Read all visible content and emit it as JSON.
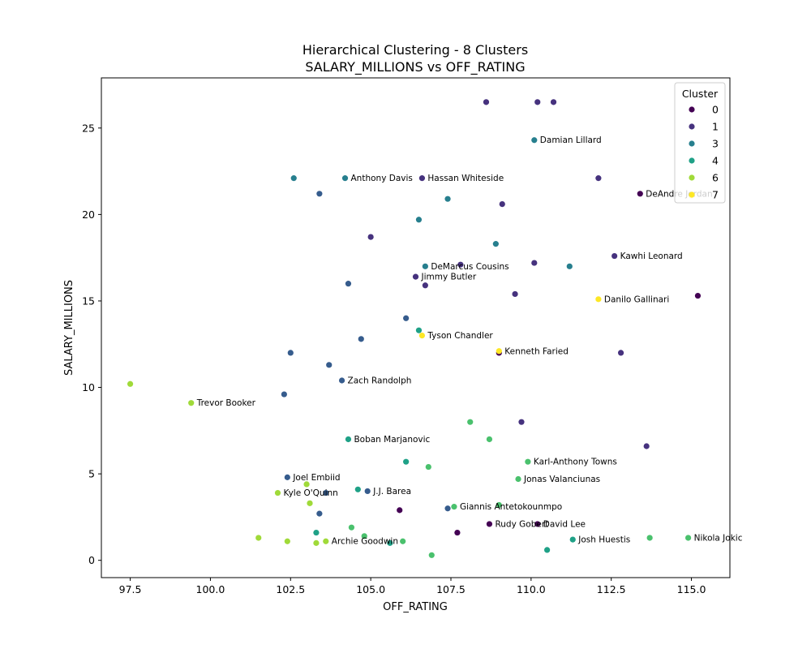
{
  "chart_data": {
    "type": "scatter",
    "title": "Hierarchical Clustering - 8 Clusters",
    "subtitle": "SALARY_MILLIONS vs OFF_RATING",
    "xlabel": "OFF_RATING",
    "ylabel": "SALARY_MILLIONS",
    "xlim": [
      96.6,
      116.2
    ],
    "ylim": [
      -1.0,
      27.9
    ],
    "xticks": [
      "97.5",
      "100.0",
      "102.5",
      "105.0",
      "107.5",
      "110.0",
      "112.5",
      "115.0"
    ],
    "yticks": [
      "0",
      "5",
      "10",
      "15",
      "20",
      "25"
    ],
    "grid": false,
    "legend": {
      "title": "Cluster",
      "placement": "top-right",
      "entries": [
        {
          "label": "0",
          "color": "#440154"
        },
        {
          "label": "1",
          "color": "#46327e"
        },
        {
          "label": "3",
          "color": "#277f8e"
        },
        {
          "label": "4",
          "color": "#1fa187"
        },
        {
          "label": "6",
          "color": "#a0da39"
        },
        {
          "label": "7",
          "color": "#fde725"
        }
      ]
    },
    "cluster_colors": {
      "0": "#440154",
      "1": "#46327e",
      "2": "#365c8d",
      "3": "#277f8e",
      "4": "#1fa187",
      "5": "#4ac16d",
      "6": "#a0da39",
      "7": "#fde725"
    },
    "points": [
      {
        "x": 108.6,
        "y": 26.5,
        "c": 1
      },
      {
        "x": 110.2,
        "y": 26.5,
        "c": 1
      },
      {
        "x": 110.7,
        "y": 26.5,
        "c": 1
      },
      {
        "x": 110.1,
        "y": 24.3,
        "c": 3,
        "label": "Damian Lillard"
      },
      {
        "x": 102.6,
        "y": 22.1,
        "c": 3
      },
      {
        "x": 104.2,
        "y": 22.1,
        "c": 3,
        "label": "Anthony Davis"
      },
      {
        "x": 106.6,
        "y": 22.1,
        "c": 1,
        "label": "Hassan Whiteside"
      },
      {
        "x": 112.1,
        "y": 22.1,
        "c": 1
      },
      {
        "x": 103.4,
        "y": 21.2,
        "c": 2
      },
      {
        "x": 113.4,
        "y": 21.2,
        "c": 0,
        "label": "DeAndre Jordan"
      },
      {
        "x": 115.0,
        "y": 21.1,
        "c": 7
      },
      {
        "x": 107.4,
        "y": 20.9,
        "c": 3
      },
      {
        "x": 109.1,
        "y": 20.6,
        "c": 1
      },
      {
        "x": 106.5,
        "y": 19.7,
        "c": 3
      },
      {
        "x": 105.0,
        "y": 18.7,
        "c": 1
      },
      {
        "x": 108.9,
        "y": 18.3,
        "c": 3
      },
      {
        "x": 112.6,
        "y": 17.6,
        "c": 1,
        "label": "Kawhi Leonard"
      },
      {
        "x": 107.8,
        "y": 17.1,
        "c": 1
      },
      {
        "x": 110.1,
        "y": 17.2,
        "c": 1
      },
      {
        "x": 106.7,
        "y": 17.0,
        "c": 3,
        "label": "DeMarcus Cousins"
      },
      {
        "x": 111.2,
        "y": 17.0,
        "c": 3
      },
      {
        "x": 106.4,
        "y": 16.4,
        "c": 1,
        "label": "Jimmy Butler"
      },
      {
        "x": 104.3,
        "y": 16.0,
        "c": 2
      },
      {
        "x": 106.7,
        "y": 15.9,
        "c": 1
      },
      {
        "x": 109.5,
        "y": 15.4,
        "c": 1
      },
      {
        "x": 115.2,
        "y": 15.3,
        "c": 0
      },
      {
        "x": 112.1,
        "y": 15.1,
        "c": 7,
        "label": "Danilo Gallinari"
      },
      {
        "x": 106.1,
        "y": 14.0,
        "c": 2
      },
      {
        "x": 106.5,
        "y": 13.3,
        "c": 4
      },
      {
        "x": 106.6,
        "y": 13.0,
        "c": 7,
        "label": "Tyson Chandler"
      },
      {
        "x": 104.7,
        "y": 12.8,
        "c": 2
      },
      {
        "x": 102.5,
        "y": 12.0,
        "c": 2
      },
      {
        "x": 109.0,
        "y": 12.0,
        "c": 0
      },
      {
        "x": 109.0,
        "y": 12.1,
        "c": 7,
        "label": "Kenneth Faried"
      },
      {
        "x": 112.8,
        "y": 12.0,
        "c": 1
      },
      {
        "x": 103.7,
        "y": 11.3,
        "c": 2
      },
      {
        "x": 104.1,
        "y": 10.4,
        "c": 2,
        "label": "Zach Randolph"
      },
      {
        "x": 97.5,
        "y": 10.2,
        "c": 6
      },
      {
        "x": 102.3,
        "y": 9.6,
        "c": 2
      },
      {
        "x": 99.4,
        "y": 9.1,
        "c": 6,
        "label": "Trevor Booker"
      },
      {
        "x": 108.1,
        "y": 8.0,
        "c": 5
      },
      {
        "x": 109.7,
        "y": 8.0,
        "c": 1
      },
      {
        "x": 104.3,
        "y": 7.0,
        "c": 4,
        "label": "Boban Marjanovic"
      },
      {
        "x": 108.7,
        "y": 7.0,
        "c": 5
      },
      {
        "x": 113.6,
        "y": 6.6,
        "c": 1
      },
      {
        "x": 106.1,
        "y": 5.7,
        "c": 4
      },
      {
        "x": 109.9,
        "y": 5.7,
        "c": 5,
        "label": "Karl-Anthony Towns"
      },
      {
        "x": 106.8,
        "y": 5.4,
        "c": 5
      },
      {
        "x": 102.4,
        "y": 4.8,
        "c": 2,
        "label": "Joel Embiid"
      },
      {
        "x": 109.6,
        "y": 4.7,
        "c": 5,
        "label": "Jonas Valanciunas"
      },
      {
        "x": 103.0,
        "y": 4.4,
        "c": 6
      },
      {
        "x": 104.6,
        "y": 4.1,
        "c": 4
      },
      {
        "x": 104.9,
        "y": 4.0,
        "c": 2,
        "label": "J.J. Barea"
      },
      {
        "x": 102.1,
        "y": 3.9,
        "c": 6,
        "label": "Kyle O'Quinn"
      },
      {
        "x": 103.6,
        "y": 3.9,
        "c": 2
      },
      {
        "x": 103.1,
        "y": 3.3,
        "c": 6
      },
      {
        "x": 109.0,
        "y": 3.2,
        "c": 5
      },
      {
        "x": 107.4,
        "y": 3.0,
        "c": 2
      },
      {
        "x": 107.6,
        "y": 3.1,
        "c": 5,
        "label": "Giannis Antetokounmpo"
      },
      {
        "x": 105.9,
        "y": 2.9,
        "c": 0
      },
      {
        "x": 103.4,
        "y": 2.7,
        "c": 2
      },
      {
        "x": 108.7,
        "y": 2.1,
        "c": 0,
        "label": "Rudy Gobert"
      },
      {
        "x": 110.2,
        "y": 2.1,
        "c": 0,
        "label": "David Lee"
      },
      {
        "x": 104.4,
        "y": 1.9,
        "c": 5
      },
      {
        "x": 107.7,
        "y": 1.6,
        "c": 0
      },
      {
        "x": 103.3,
        "y": 1.6,
        "c": 4
      },
      {
        "x": 101.5,
        "y": 1.3,
        "c": 6
      },
      {
        "x": 104.8,
        "y": 1.4,
        "c": 5
      },
      {
        "x": 113.7,
        "y": 1.3,
        "c": 5
      },
      {
        "x": 114.9,
        "y": 1.3,
        "c": 5,
        "label": "Nikola Jokic"
      },
      {
        "x": 111.3,
        "y": 1.2,
        "c": 4,
        "label": "Josh Huestis"
      },
      {
        "x": 102.4,
        "y": 1.1,
        "c": 6
      },
      {
        "x": 103.3,
        "y": 1.0,
        "c": 6
      },
      {
        "x": 103.6,
        "y": 1.1,
        "c": 6,
        "label": "Archie Goodwin"
      },
      {
        "x": 105.6,
        "y": 1.0,
        "c": 4
      },
      {
        "x": 106.0,
        "y": 1.1,
        "c": 5
      },
      {
        "x": 110.5,
        "y": 0.6,
        "c": 4
      },
      {
        "x": 106.9,
        "y": 0.3,
        "c": 5
      }
    ]
  }
}
